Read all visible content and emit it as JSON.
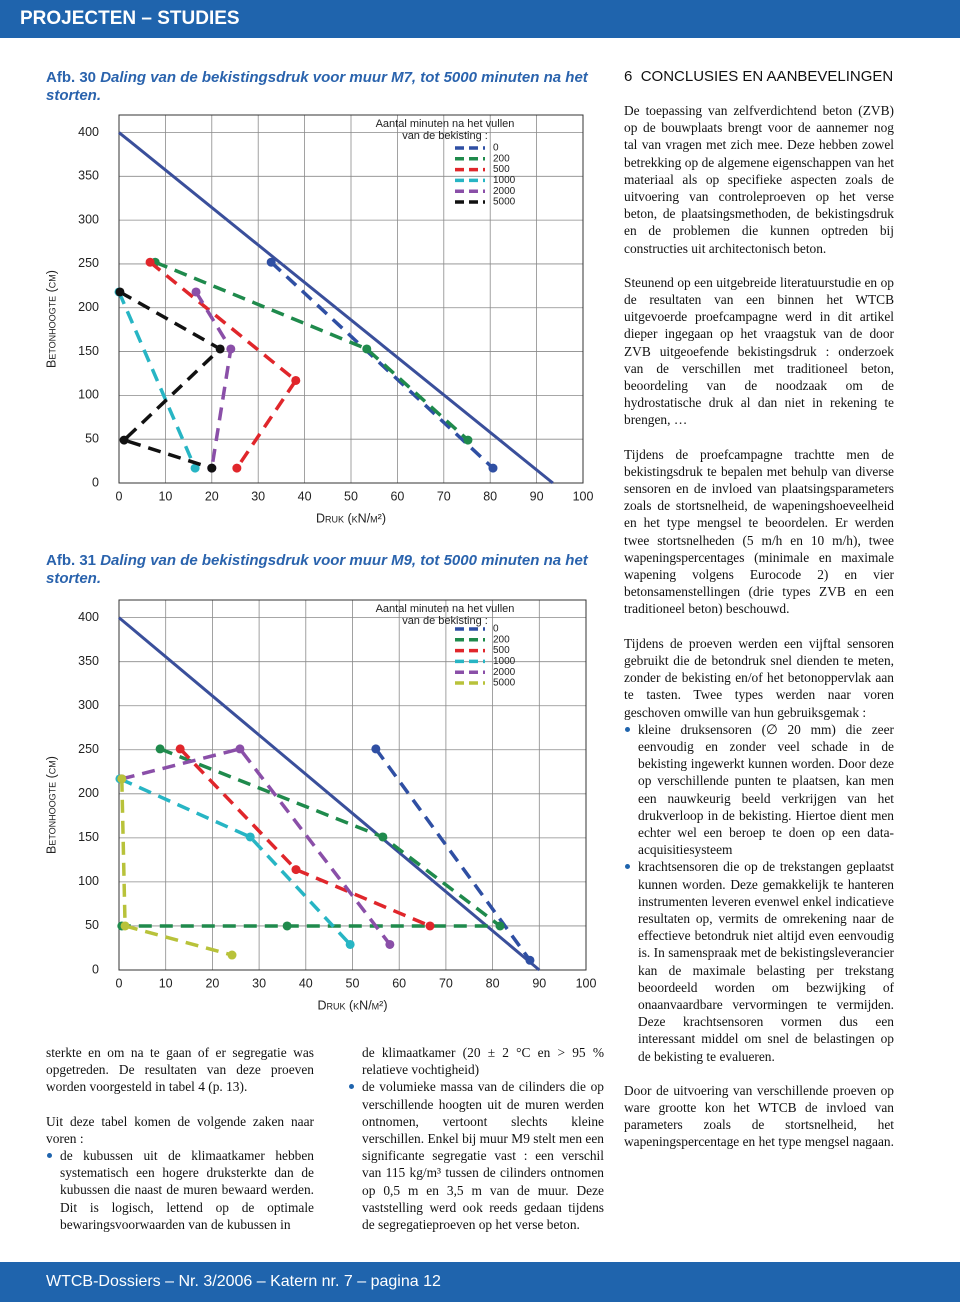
{
  "header": {
    "title": "PROJECTEN – STUDIES"
  },
  "figures": [
    {
      "label": "Afb. 30",
      "caption": "Daling van de bekistingsdruk voor muur M7, tot 5000 minuten na het storten."
    },
    {
      "label": "Afb. 31",
      "caption": "Daling van de bekistingsdruk voor muur M9, tot 5000 minuten na het storten."
    }
  ],
  "chart_data": [
    {
      "type": "line",
      "x_label": "Druk (kN/m²)",
      "y_label": "Betonhoogte (cm)",
      "legend_title": "Aantal minuten na het vullen van de bekisting :",
      "xlim": [
        0,
        100
      ],
      "ylim": [
        0,
        420
      ],
      "xticks": [
        0,
        10,
        20,
        30,
        40,
        50,
        60,
        70,
        80,
        90,
        100
      ],
      "yticks": [
        0,
        50,
        100,
        150,
        200,
        250,
        300,
        350,
        400
      ],
      "grid": true,
      "legend": "top-right",
      "reference_line": {
        "color": "#3a4f9b",
        "x": [
          0,
          93.5
        ],
        "values": [
          400,
          0
        ]
      },
      "series": [
        {
          "name": "0",
          "color": "#2f4fa3",
          "x": [
            32.8,
            80.6
          ],
          "values": [
            252,
            17
          ]
        },
        {
          "name": "200",
          "color": "#1f8a4c",
          "x": [
            7.8,
            53.4,
            75.2
          ],
          "values": [
            252,
            153,
            49
          ]
        },
        {
          "name": "500",
          "color": "#e0262b",
          "x": [
            6.7,
            38.1,
            25.4
          ],
          "values": [
            252,
            117,
            17
          ]
        },
        {
          "name": "1000",
          "color": "#27b5c4",
          "x": [
            0,
            16.4
          ],
          "values": [
            218,
            17
          ]
        },
        {
          "name": "2000",
          "color": "#8a4fa8",
          "x": [
            16.6,
            24.1,
            20.0
          ],
          "values": [
            218,
            153,
            17
          ]
        },
        {
          "name": "5000",
          "color": "#111111",
          "x": [
            0.2,
            21.8,
            1.1,
            20.0
          ],
          "values": [
            218,
            153,
            49,
            17
          ]
        }
      ]
    },
    {
      "type": "line",
      "x_label": "Druk (kN/m²)",
      "y_label": "Betonhoogte (cm)",
      "legend_title": "Aantal minuten na het vullen van de bekisting :",
      "xlim": [
        0,
        100
      ],
      "ylim": [
        0,
        420
      ],
      "xticks": [
        0,
        10,
        20,
        30,
        40,
        50,
        60,
        70,
        80,
        90,
        100
      ],
      "yticks": [
        0,
        50,
        100,
        150,
        200,
        250,
        300,
        350,
        400
      ],
      "grid": true,
      "legend": "top-right",
      "reference_line": {
        "color": "#3a4f9b",
        "x": [
          0,
          90
        ],
        "values": [
          400,
          0
        ]
      },
      "series": [
        {
          "name": "0",
          "color": "#2f4fa3",
          "x": [
            55,
            88
          ],
          "values": [
            251,
            11
          ]
        },
        {
          "name": "200",
          "color": "#1f8a4c",
          "x": [
            8.8,
            56.5,
            81.6,
            36.0,
            0.6
          ],
          "values": [
            251,
            151,
            50,
            50,
            50
          ]
        },
        {
          "name": "500",
          "color": "#e0262b",
          "x": [
            13.1,
            37.9,
            66.6
          ],
          "values": [
            251,
            114,
            50
          ]
        },
        {
          "name": "1000",
          "color": "#27b5c4",
          "x": [
            0.2,
            28.1,
            49.5
          ],
          "values": [
            217,
            151,
            29
          ]
        },
        {
          "name": "2000",
          "color": "#8a4fa8",
          "x": [
            0.6,
            25.9,
            58.0
          ],
          "values": [
            217,
            251,
            29
          ]
        },
        {
          "name": "5000",
          "color": "#b8c23a",
          "x": [
            0.6,
            1.3,
            24.2
          ],
          "values": [
            217,
            50,
            17
          ]
        }
      ]
    }
  ],
  "left_text": {
    "paragraphs": [
      "sterkte en om na te gaan of er segregatie was opgetreden. De resultaten van deze proeven worden voorgesteld in tabel 4 (p. 13).",
      "Uit deze tabel komen de volgende zaken naar voren :"
    ],
    "bullets": [
      "de kubussen uit de klimaatkamer hebben systematisch een hogere druksterkte dan de kubussen die naast de muren bewaard werden. Dit is logisch, lettend op de optimale bewaringsvoorwaarden van de kubussen in"
    ]
  },
  "middle_text": {
    "continuation": "de klimaatkamer (20 ± 2 °C en > 95 % relatieve vochtigheid)",
    "bullets": [
      "de volumieke massa van de cilinders die op verschillende hoogten uit de muren werden ontnomen, vertoont slechts kleine verschillen. Enkel bij muur M9 stelt men een significante segregatie vast : een verschil van 115 kg/m³ tussen de cilinders ontnomen op 0,5 m en 3,5 m van de muur. Deze vaststelling werd ook reeds gedaan tijdens de segregatieproeven op het verse beton."
    ]
  },
  "section": {
    "number": "6",
    "title": "CONCLUSIES EN AANBEVELINGEN",
    "paragraphs": [
      "De toepassing van zelfverdichtend beton (ZVB) op de bouwplaats brengt voor de aannemer nog tal van vragen met zich mee. Deze hebben zowel betrekking op de algemene eigenschappen van het materiaal als op specifieke aspecten zoals de uitvoering van controleproeven op het verse beton, de plaatsingsmethoden, de bekistingsdruk en de problemen die kunnen optreden bij constructies uit architectonisch beton.",
      "Steunend op een uitgebreide literatuurstudie en op de resultaten van een binnen het WTCB uitgevoerde proefcampagne werd in dit artikel dieper ingegaan op het vraagstuk van de door ZVB uitgeoefende bekistingsdruk : onderzoek van de verschillen met traditioneel beton, beoordeling van de noodzaak om de hydrostatische druk al dan niet in rekening te brengen, …",
      "Tijdens de proefcampagne trachtte men de bekistingsdruk te bepalen met behulp van diverse sensoren en de invloed van plaatsingsparameters zoals de stortsnelheid, de wapeningshoeveelheid en het type mengsel te beoordelen. Er werden twee stortsnelheden (5 m/h en 10 m/h), twee wapeningspercentages (minimale en maximale wapening volgens Eurocode 2) en vier betonsamenstellingen (drie types ZVB en een traditioneel beton) beschouwd.",
      "Tijdens de proeven werden een vijftal sensoren gebruikt die de betondruk snel dienden te meten, zonder de bekisting en/of het betonoppervlak aan te tasten. Twee types werden naar voren geschoven omwille van hun gebruiksgemak :"
    ],
    "bullets": [
      "kleine druksensoren (∅ 20 mm) die zeer eenvoudig en zonder veel schade in de bekisting ingewerkt kunnen worden. Door deze op verschillende punten te plaatsen, kan men een nauwkeurig beeld verkrijgen van het drukverloop in de bekisting. Hiertoe dient men echter wel een beroep te doen op een data-acquisitiesysteem",
      "krachtsensoren die op de trekstangen geplaatst kunnen worden. Deze gemakkelijk te hanteren instrumenten leveren evenwel enkel indicatieve resultaten op, vermits de omrekening naar de effectieve betondruk niet altijd even eenvoudig is. In samenspraak met de bekistingsleverancier kan de maximale belasting per trekstang beoordeeld worden om bezwijking of onaanvaardbare vervormingen te vermijden. Deze krachtsensoren vormen dus een interessant middel om snel de belastingen op de bekisting te evalueren."
    ],
    "closing": "Door de uitvoering van verschillende proeven op ware grootte kon het WTCB de invloed van parameters zoals de stortsnelheid, het wapeningspercentage en het type mengsel nagaan."
  },
  "footer": {
    "text": "WTCB-Dossiers – Nr. 3/2006 – Katern nr. 7 – pagina 12"
  }
}
